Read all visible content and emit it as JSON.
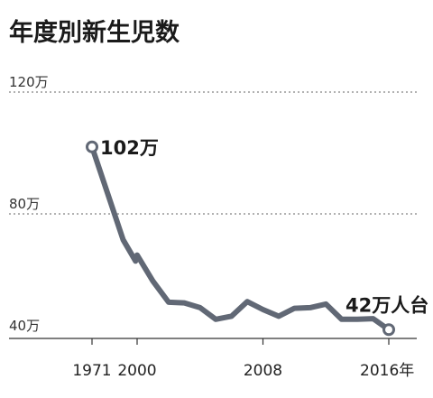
{
  "chart_data": {
    "type": "line",
    "title": "年度別新生児数",
    "xlabel": "",
    "ylabel": "",
    "ylim": [
      40,
      120
    ],
    "grid": true,
    "y_ticks": [
      {
        "value": 120,
        "label": "120万"
      },
      {
        "value": 80,
        "label": "80万"
      },
      {
        "value": 40,
        "label": "40万"
      }
    ],
    "x_ticks": [
      {
        "value": 1971,
        "label": "1971"
      },
      {
        "value": 2000,
        "label": "2000"
      },
      {
        "value": 2008,
        "label": "2008"
      },
      {
        "value": 2016,
        "label": "2016年"
      }
    ],
    "series": [
      {
        "color": "#616875",
        "points": [
          {
            "x": 1971,
            "y": 102
          },
          {
            "x": 1991,
            "y": 71.5
          },
          {
            "x": 1999,
            "y": 64.5
          },
          {
            "x": 2000,
            "y": 66.5
          },
          {
            "x": 2001,
            "y": 58
          },
          {
            "x": 2002,
            "y": 51
          },
          {
            "x": 2003,
            "y": 50.8
          },
          {
            "x": 2004,
            "y": 49.2
          },
          {
            "x": 2005,
            "y": 45.4
          },
          {
            "x": 2006,
            "y": 46.4
          },
          {
            "x": 2007,
            "y": 51.2
          },
          {
            "x": 2008,
            "y": 48.6
          },
          {
            "x": 2009,
            "y": 46.4
          },
          {
            "x": 2010,
            "y": 49
          },
          {
            "x": 2011,
            "y": 49.2
          },
          {
            "x": 2012,
            "y": 50.4
          },
          {
            "x": 2013,
            "y": 45.4
          },
          {
            "x": 2014,
            "y": 45.4
          },
          {
            "x": 2015,
            "y": 45.6
          },
          {
            "x": 2016,
            "y": 42
          }
        ]
      }
    ],
    "annotations": [
      {
        "text": "102万",
        "x": 1971,
        "y": 102
      },
      {
        "text": "42万人台",
        "x": 2016,
        "y": 42
      }
    ]
  }
}
